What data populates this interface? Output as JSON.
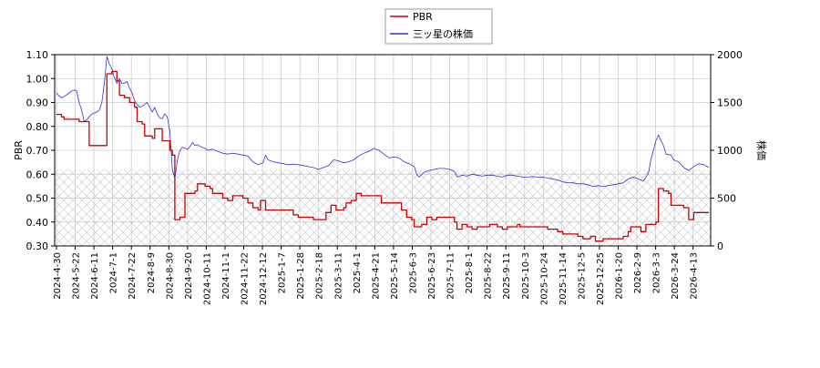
{
  "chart_data": {
    "type": "line",
    "legend_position": "top-center",
    "grid": true,
    "hatched_band": {
      "y_left_range": [
        0.3,
        0.62
      ]
    },
    "y_left": {
      "label": "PBR",
      "min": 0.3,
      "max": 1.1,
      "ticks": [
        "0.30",
        "0.40",
        "0.50",
        "0.60",
        "0.70",
        "0.80",
        "0.90",
        "1.00",
        "1.10"
      ]
    },
    "y_right": {
      "label": "株価",
      "min": 0,
      "max": 2000,
      "ticks": [
        "0",
        "500",
        "1000",
        "1500",
        "2000"
      ]
    },
    "x_ticks": [
      "2024-4-30",
      "2024-5-22",
      "2024-6-11",
      "2024-7-1",
      "2024-7-22",
      "2024-8-9",
      "2024-8-30",
      "2024-9-20",
      "2024-10-11",
      "2024-11-1",
      "2024-11-22",
      "2024-12-12",
      "2025-1-7",
      "2025-1-28",
      "2025-2-18",
      "2025-3-11",
      "2025-4-1",
      "2025-4-21",
      "2025-5-14",
      "2025-6-3",
      "2025-6-23",
      "2025-7-11",
      "2025-8-1",
      "2025-8-22",
      "2025-9-11",
      "2025-10-3",
      "2025-10-24",
      "2025-11-14",
      "2025-12-5",
      "2025-12-25",
      "2026-1-20",
      "2026-2-9",
      "2026-3-3",
      "2026-3-24",
      "2026-4-13"
    ],
    "series": [
      {
        "name": "PBR",
        "color": "#cc0000",
        "axis": "left",
        "points": [
          [
            0,
            0.85
          ],
          [
            2,
            0.84
          ],
          [
            3,
            0.83
          ],
          [
            8,
            0.83
          ],
          [
            9,
            0.82
          ],
          [
            12,
            0.82
          ],
          [
            13,
            0.72
          ],
          [
            19,
            0.72
          ],
          [
            20,
            1.02
          ],
          [
            22,
            1.03
          ],
          [
            24,
            0.99
          ],
          [
            25,
            0.93
          ],
          [
            27,
            0.92
          ],
          [
            29,
            0.9
          ],
          [
            31,
            0.88
          ],
          [
            32,
            0.82
          ],
          [
            34,
            0.81
          ],
          [
            35,
            0.76
          ],
          [
            38,
            0.75
          ],
          [
            39,
            0.79
          ],
          [
            41,
            0.79
          ],
          [
            42,
            0.74
          ],
          [
            45,
            0.7
          ],
          [
            46,
            0.68
          ],
          [
            47,
            0.41
          ],
          [
            49,
            0.42
          ],
          [
            51,
            0.52
          ],
          [
            55,
            0.53
          ],
          [
            56,
            0.56
          ],
          [
            59,
            0.55
          ],
          [
            61,
            0.54
          ],
          [
            62,
            0.52
          ],
          [
            66,
            0.5
          ],
          [
            68,
            0.49
          ],
          [
            70,
            0.51
          ],
          [
            74,
            0.5
          ],
          [
            76,
            0.48
          ],
          [
            78,
            0.46
          ],
          [
            80,
            0.45
          ],
          [
            81,
            0.49
          ],
          [
            83,
            0.45
          ],
          [
            92,
            0.45
          ],
          [
            94,
            0.43
          ],
          [
            96,
            0.42
          ],
          [
            100,
            0.42
          ],
          [
            102,
            0.41
          ],
          [
            104,
            0.41
          ],
          [
            107,
            0.44
          ],
          [
            109,
            0.47
          ],
          [
            111,
            0.45
          ],
          [
            114,
            0.46
          ],
          [
            115,
            0.48
          ],
          [
            117,
            0.49
          ],
          [
            119,
            0.52
          ],
          [
            121,
            0.51
          ],
          [
            128,
            0.51
          ],
          [
            129,
            0.48
          ],
          [
            136,
            0.48
          ],
          [
            137,
            0.45
          ],
          [
            139,
            0.42
          ],
          [
            141,
            0.41
          ],
          [
            142,
            0.38
          ],
          [
            145,
            0.39
          ],
          [
            147,
            0.42
          ],
          [
            149,
            0.41
          ],
          [
            151,
            0.42
          ],
          [
            156,
            0.42
          ],
          [
            158,
            0.4
          ],
          [
            159,
            0.37
          ],
          [
            161,
            0.39
          ],
          [
            163,
            0.38
          ],
          [
            165,
            0.37
          ],
          [
            167,
            0.38
          ],
          [
            171,
            0.38
          ],
          [
            172,
            0.39
          ],
          [
            175,
            0.38
          ],
          [
            177,
            0.37
          ],
          [
            179,
            0.38
          ],
          [
            181,
            0.38
          ],
          [
            183,
            0.39
          ],
          [
            184,
            0.38
          ],
          [
            194,
            0.38
          ],
          [
            195,
            0.37
          ],
          [
            199,
            0.36
          ],
          [
            201,
            0.35
          ],
          [
            205,
            0.35
          ],
          [
            207,
            0.34
          ],
          [
            209,
            0.33
          ],
          [
            212,
            0.34
          ],
          [
            214,
            0.32
          ],
          [
            217,
            0.33
          ],
          [
            224,
            0.33
          ],
          [
            225,
            0.34
          ],
          [
            227,
            0.36
          ],
          [
            228,
            0.38
          ],
          [
            232,
            0.36
          ],
          [
            234,
            0.39
          ],
          [
            238,
            0.4
          ],
          [
            239,
            0.54
          ],
          [
            241,
            0.53
          ],
          [
            243,
            0.52
          ],
          [
            244,
            0.47
          ],
          [
            247,
            0.47
          ],
          [
            249,
            0.46
          ],
          [
            251,
            0.41
          ],
          [
            253,
            0.44
          ],
          [
            259,
            0.44
          ]
        ]
      },
      {
        "name": "三ッ星の株価",
        "color": "#3333cc",
        "axis": "right",
        "points": [
          [
            0,
            1600
          ],
          [
            1,
            1570
          ],
          [
            2,
            1550
          ],
          [
            3,
            1560
          ],
          [
            4,
            1580
          ],
          [
            5,
            1600
          ],
          [
            6,
            1620
          ],
          [
            7,
            1630
          ],
          [
            8,
            1620
          ],
          [
            9,
            1500
          ],
          [
            10,
            1420
          ],
          [
            11,
            1300
          ],
          [
            12,
            1320
          ],
          [
            13,
            1350
          ],
          [
            14,
            1380
          ],
          [
            15,
            1390
          ],
          [
            16,
            1400
          ],
          [
            17,
            1420
          ],
          [
            18,
            1500
          ],
          [
            19,
            1700
          ],
          [
            20,
            1980
          ],
          [
            21,
            1900
          ],
          [
            22,
            1850
          ],
          [
            23,
            1760
          ],
          [
            24,
            1700
          ],
          [
            25,
            1750
          ],
          [
            26,
            1700
          ],
          [
            27,
            1700
          ],
          [
            28,
            1720
          ],
          [
            29,
            1650
          ],
          [
            30,
            1600
          ],
          [
            31,
            1520
          ],
          [
            32,
            1480
          ],
          [
            33,
            1450
          ],
          [
            34,
            1460
          ],
          [
            35,
            1480
          ],
          [
            36,
            1500
          ],
          [
            37,
            1450
          ],
          [
            38,
            1400
          ],
          [
            39,
            1450
          ],
          [
            40,
            1380
          ],
          [
            41,
            1340
          ],
          [
            42,
            1330
          ],
          [
            43,
            1380
          ],
          [
            44,
            1350
          ],
          [
            45,
            1200
          ],
          [
            46,
            800
          ],
          [
            47,
            700
          ],
          [
            48,
            900
          ],
          [
            49,
            1000
          ],
          [
            50,
            1030
          ],
          [
            51,
            1020
          ],
          [
            52,
            1010
          ],
          [
            53,
            1040
          ],
          [
            54,
            1080
          ],
          [
            55,
            1050
          ],
          [
            56,
            1060
          ],
          [
            57,
            1040
          ],
          [
            58,
            1030
          ],
          [
            59,
            1020
          ],
          [
            60,
            1000
          ],
          [
            62,
            1010
          ],
          [
            64,
            990
          ],
          [
            66,
            970
          ],
          [
            68,
            960
          ],
          [
            70,
            970
          ],
          [
            72,
            960
          ],
          [
            74,
            950
          ],
          [
            76,
            940
          ],
          [
            78,
            880
          ],
          [
            80,
            850
          ],
          [
            82,
            870
          ],
          [
            83,
            950
          ],
          [
            84,
            900
          ],
          [
            86,
            880
          ],
          [
            88,
            870
          ],
          [
            90,
            860
          ],
          [
            92,
            850
          ],
          [
            94,
            855
          ],
          [
            96,
            850
          ],
          [
            98,
            840
          ],
          [
            100,
            830
          ],
          [
            102,
            820
          ],
          [
            104,
            800
          ],
          [
            106,
            820
          ],
          [
            108,
            840
          ],
          [
            110,
            900
          ],
          [
            112,
            890
          ],
          [
            114,
            870
          ],
          [
            116,
            880
          ],
          [
            118,
            900
          ],
          [
            120,
            940
          ],
          [
            122,
            970
          ],
          [
            124,
            990
          ],
          [
            126,
            1020
          ],
          [
            128,
            1000
          ],
          [
            130,
            960
          ],
          [
            132,
            920
          ],
          [
            134,
            930
          ],
          [
            136,
            920
          ],
          [
            138,
            880
          ],
          [
            140,
            860
          ],
          [
            142,
            830
          ],
          [
            143,
            750
          ],
          [
            144,
            720
          ],
          [
            146,
            770
          ],
          [
            148,
            790
          ],
          [
            150,
            800
          ],
          [
            152,
            810
          ],
          [
            154,
            810
          ],
          [
            156,
            800
          ],
          [
            158,
            780
          ],
          [
            159,
            720
          ],
          [
            161,
            740
          ],
          [
            163,
            730
          ],
          [
            165,
            750
          ],
          [
            167,
            740
          ],
          [
            169,
            730
          ],
          [
            171,
            740
          ],
          [
            173,
            740
          ],
          [
            175,
            730
          ],
          [
            177,
            720
          ],
          [
            179,
            740
          ],
          [
            181,
            740
          ],
          [
            183,
            730
          ],
          [
            185,
            720
          ],
          [
            187,
            720
          ],
          [
            189,
            725
          ],
          [
            191,
            720
          ],
          [
            193,
            720
          ],
          [
            195,
            710
          ],
          [
            197,
            700
          ],
          [
            199,
            690
          ],
          [
            201,
            670
          ],
          [
            203,
            660
          ],
          [
            205,
            660
          ],
          [
            207,
            650
          ],
          [
            209,
            650
          ],
          [
            211,
            640
          ],
          [
            213,
            620
          ],
          [
            215,
            630
          ],
          [
            217,
            620
          ],
          [
            219,
            630
          ],
          [
            221,
            640
          ],
          [
            223,
            650
          ],
          [
            225,
            660
          ],
          [
            227,
            700
          ],
          [
            229,
            720
          ],
          [
            231,
            700
          ],
          [
            233,
            680
          ],
          [
            235,
            760
          ],
          [
            236,
            900
          ],
          [
            237,
            1000
          ],
          [
            238,
            1100
          ],
          [
            239,
            1160
          ],
          [
            240,
            1100
          ],
          [
            241,
            1050
          ],
          [
            242,
            960
          ],
          [
            244,
            950
          ],
          [
            245,
            900
          ],
          [
            247,
            880
          ],
          [
            249,
            820
          ],
          [
            251,
            790
          ],
          [
            253,
            830
          ],
          [
            255,
            860
          ],
          [
            257,
            850
          ],
          [
            259,
            820
          ]
        ]
      }
    ]
  }
}
